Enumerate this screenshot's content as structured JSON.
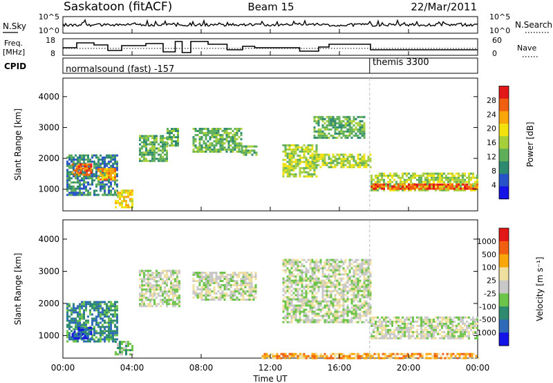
{
  "header": {
    "station": "Saskatoon (fitACF)",
    "beam": "Beam 15",
    "date": "22/Mar/2011"
  },
  "noise_panel": {
    "left_label": "N.Sky",
    "left_ticks": [
      "10^5",
      "10^0"
    ],
    "right_label": "N.Search",
    "right_ticks": [
      "10^5",
      "10^0"
    ]
  },
  "freq_panel": {
    "left_label_1": "Freq.",
    "left_label_2": "[MHz]",
    "left_ticks": [
      "18",
      "8"
    ],
    "right_label": "Nave",
    "right_ticks": [
      "60",
      "0"
    ]
  },
  "cpid": {
    "label": "CPID",
    "segments": [
      {
        "name": "normalsound (fast) -157",
        "start_hour": 0
      },
      {
        "name": "themis 3300",
        "start_hour": 17.75
      }
    ]
  },
  "time_axis": {
    "title": "Time UT",
    "ticks": [
      "00:00",
      "04:00",
      "08:00",
      "12:00",
      "16:00",
      "20:00",
      "00:00"
    ]
  },
  "chart_data": [
    {
      "type": "heatmap",
      "title": "",
      "ylabel": "Slant Range [km]",
      "yticks": [
        "1000",
        "2000",
        "3000",
        "4000"
      ],
      "ylim": [
        300,
        4600
      ],
      "xlim_hours": [
        0,
        24
      ],
      "colorbar": {
        "label": "Power [dB]",
        "ticks": [
          "4",
          "8",
          "12",
          "16",
          "20",
          "24",
          "28"
        ],
        "colors": [
          "#1414e6",
          "#2852c8",
          "#2e8a6e",
          "#5fae5a",
          "#a6cf3a",
          "#f1e20e",
          "#f8a60a",
          "#f06010",
          "#e21818"
        ]
      },
      "regions": [
        {
          "t0": 0.2,
          "t1": 3.2,
          "r0": 850,
          "r1": 2150,
          "level": 2
        },
        {
          "t0": 0.5,
          "t1": 1.6,
          "r0": 1500,
          "r1": 1900,
          "level": 7
        },
        {
          "t0": 2.0,
          "t1": 3.0,
          "r0": 1350,
          "r1": 1700,
          "level": 6
        },
        {
          "t0": 3.0,
          "t1": 4.0,
          "r0": 450,
          "r1": 1000,
          "level": 5
        },
        {
          "t0": 4.4,
          "t1": 6.0,
          "r0": 1950,
          "r1": 2800,
          "level": 3
        },
        {
          "t0": 6.0,
          "t1": 6.7,
          "r0": 2450,
          "r1": 3050,
          "level": 3
        },
        {
          "t0": 7.5,
          "t1": 10.3,
          "r0": 2250,
          "r1": 3000,
          "level": 3
        },
        {
          "t0": 10.3,
          "t1": 11.2,
          "r0": 2150,
          "r1": 2450,
          "level": 3
        },
        {
          "t0": 12.7,
          "t1": 14.7,
          "r0": 1450,
          "r1": 2500,
          "level": 4
        },
        {
          "t0": 14.5,
          "t1": 17.8,
          "r0": 1750,
          "r1": 2200,
          "level": 4
        },
        {
          "t0": 14.5,
          "t1": 17.5,
          "r0": 2700,
          "r1": 3400,
          "level": 3
        },
        {
          "t0": 17.8,
          "t1": 24.0,
          "r0": 1000,
          "r1": 1600,
          "level": 4
        },
        {
          "t0": 17.8,
          "t1": 24.0,
          "r0": 1050,
          "r1": 1250,
          "level": 7
        }
      ]
    },
    {
      "type": "heatmap",
      "title": "",
      "ylabel": "Slant Range [km]",
      "yticks": [
        "1000",
        "2000",
        "3000",
        "4000"
      ],
      "ylim": [
        300,
        4600
      ],
      "xlim_hours": [
        0,
        24
      ],
      "colorbar": {
        "label": "Velocity [m s⁻¹]",
        "ticks": [
          "1000",
          "500",
          "100",
          "25",
          "-25",
          "-100",
          "-500",
          "-1000"
        ],
        "colors": [
          "#1414e6",
          "#2e6ab8",
          "#2e8a6e",
          "#6cc44a",
          "#c8c8c8",
          "#f0e0a0",
          "#f8a60a",
          "#f06010",
          "#e21818"
        ]
      },
      "regions": [
        {
          "t0": 0.2,
          "t1": 3.2,
          "r0": 850,
          "r1": 2100,
          "level": 2
        },
        {
          "t0": 0.5,
          "t1": 1.6,
          "r0": 950,
          "r1": 1300,
          "level": 1
        },
        {
          "t0": 3.0,
          "t1": 4.0,
          "r0": 450,
          "r1": 900,
          "level": 3
        },
        {
          "t0": 4.4,
          "t1": 6.7,
          "r0": 1950,
          "r1": 3050,
          "level": 4
        },
        {
          "t0": 7.5,
          "t1": 11.2,
          "r0": 2150,
          "r1": 3000,
          "level": 4
        },
        {
          "t0": 12.7,
          "t1": 17.8,
          "r0": 1450,
          "r1": 3400,
          "level": 4
        },
        {
          "t0": 17.8,
          "t1": 24.0,
          "r0": 950,
          "r1": 1650,
          "level": 4
        },
        {
          "t0": 11.5,
          "t1": 24.0,
          "r0": 330,
          "r1": 480,
          "level": 6
        }
      ]
    }
  ]
}
